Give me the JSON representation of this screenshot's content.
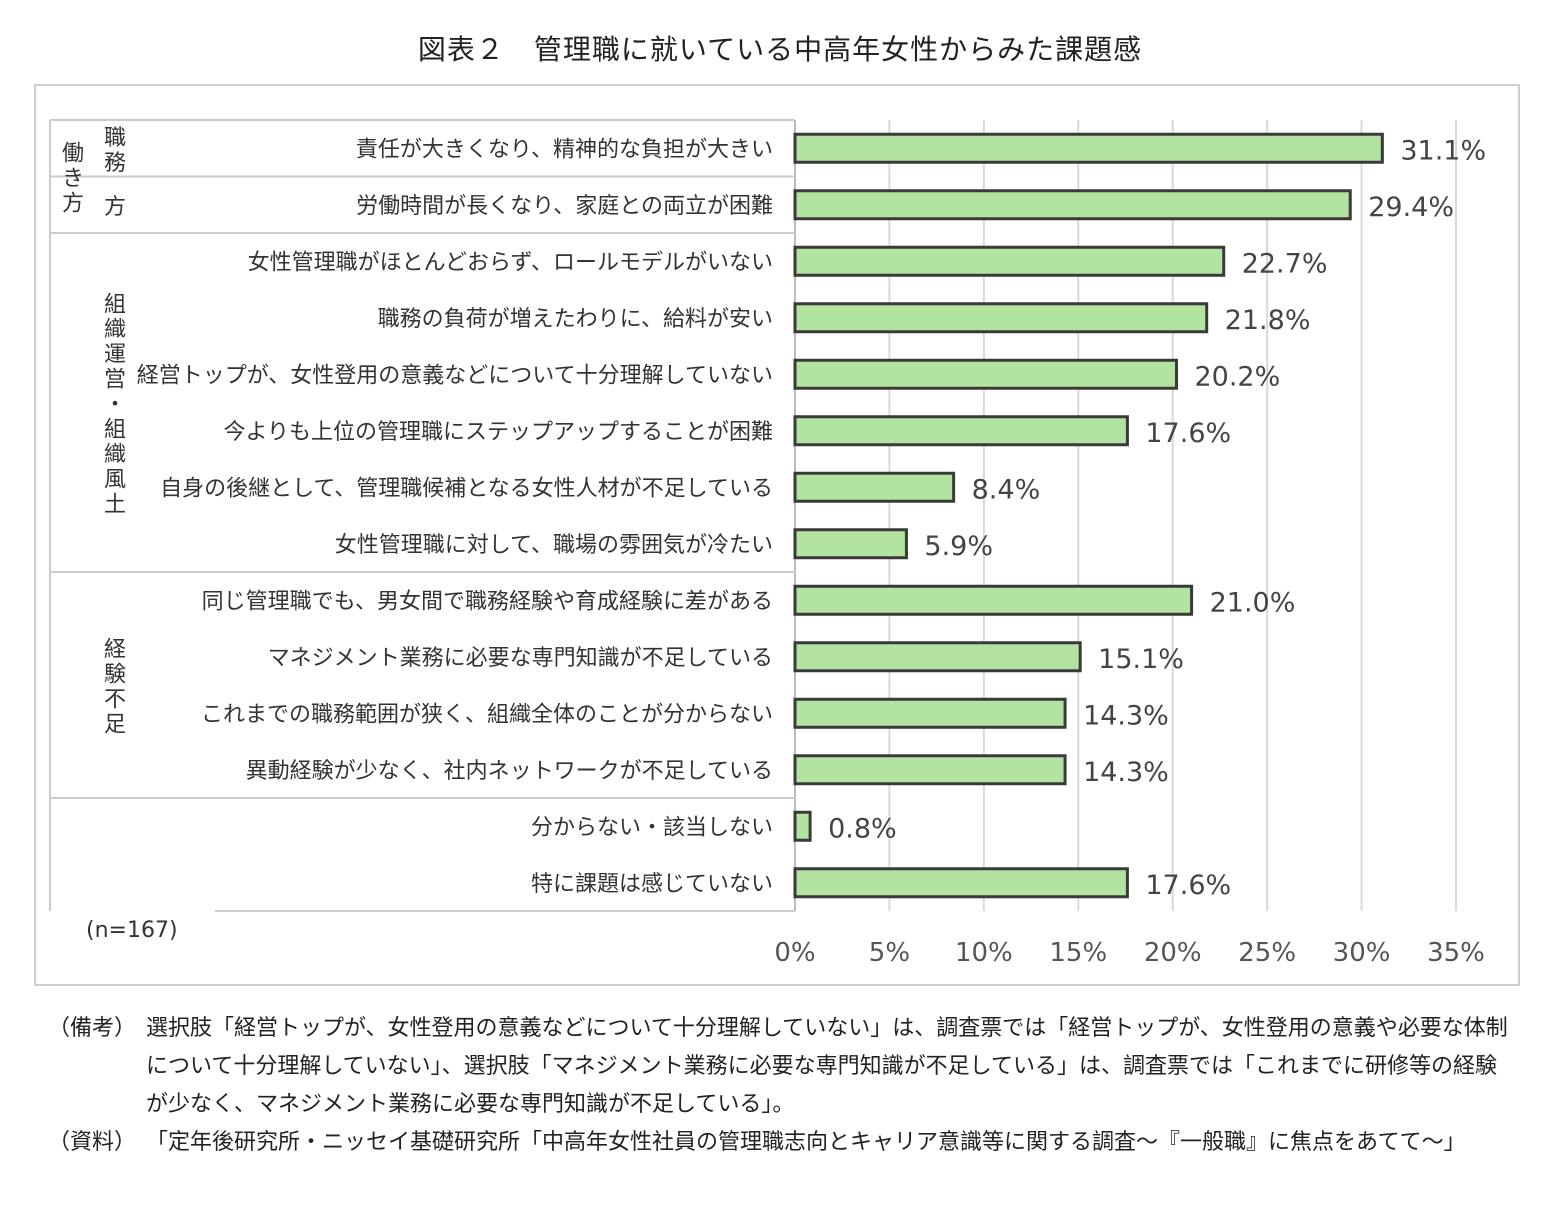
{
  "title": "図表２　管理職に就いている中高年女性からみた課題感",
  "sample_note": "(n=167)",
  "groups": [
    {
      "label": "職務",
      "label2": "働き方",
      "start": 0,
      "end": 1
    },
    {
      "label": "組織運営・組織風土",
      "start": 2,
      "end": 7
    },
    {
      "label": "経験不足",
      "start": 8,
      "end": 11
    },
    {
      "label": "",
      "start": 12,
      "end": 13
    }
  ],
  "chart_data": {
    "type": "bar",
    "orientation": "horizontal",
    "categories": [
      "責任が大きくなり、精神的な負担が大きい",
      "労働時間が長くなり、家庭との両立が困難",
      "女性管理職がほとんどおらず、ロールモデルがいない",
      "職務の負荷が増えたわりに、給料が安い",
      "経営トップが、女性登用の意義などについて十分理解していない",
      "今よりも上位の管理職にステップアップすることが困難",
      "自身の後継として、管理職候補となる女性人材が不足している",
      "女性管理職に対して、職場の雰囲気が冷たい",
      "同じ管理職でも、男女間で職務経験や育成経験に差がある",
      "マネジメント業務に必要な専門知識が不足している",
      "これまでの職務範囲が狭く、組織全体のことが分からない",
      "異動経験が少なく、社内ネットワークが不足している",
      "分からない・該当しない",
      "特に課題は感じていない"
    ],
    "values": [
      31.1,
      29.4,
      22.7,
      21.8,
      20.2,
      17.6,
      8.4,
      5.9,
      21.0,
      15.1,
      14.3,
      14.3,
      0.8,
      17.6
    ],
    "value_labels": [
      "31.1%",
      "29.4%",
      "22.7%",
      "21.8%",
      "20.2%",
      "17.6%",
      "8.4%",
      "5.9%",
      "21.0%",
      "15.1%",
      "14.3%",
      "14.3%",
      "0.8%",
      "17.6%"
    ],
    "xlim": [
      0,
      35
    ],
    "xticks": [
      "0%",
      "5%",
      "10%",
      "15%",
      "20%",
      "25%",
      "30%",
      "35%"
    ],
    "bar_color": "#b3e3a0",
    "bar_edge": "#3a3a3a",
    "grid": true
  },
  "notes": [
    {
      "tag": "（備考）",
      "text": "選択肢「経営トップが、女性登用の意義などについて十分理解していない」は、調査票では「経営トップが、女性登用の意義や必要な体制について十分理解していない」、選択肢「マネジメント業務に必要な専門知識が不足している」は、調査票では「これまでに研修等の経験が少なく、マネジメント業務に必要な専門知識が不足している」。"
    },
    {
      "tag": "（資料）",
      "text": "「定年後研究所・ニッセイ基礎研究所「中高年女性社員の管理職志向とキャリア意識等に関する調査～『一般職』に焦点をあてて～」"
    }
  ]
}
